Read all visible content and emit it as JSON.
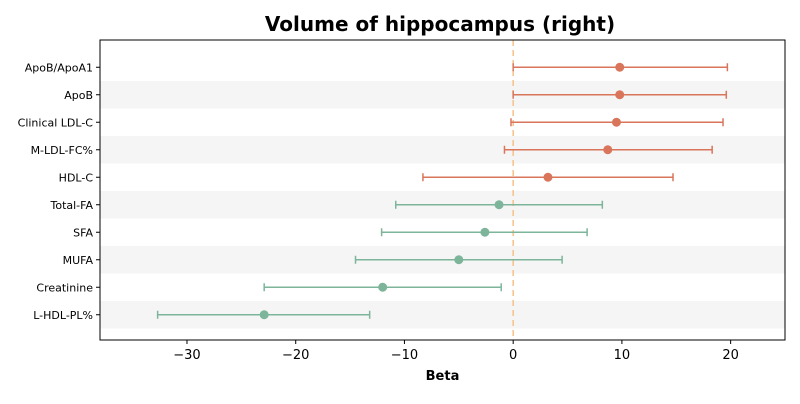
{
  "chart_data": {
    "type": "forest",
    "title": "Volume of hippocampus (right)",
    "xlabel": "Beta",
    "ylabel": "",
    "xlim": [
      -38,
      25
    ],
    "xticks": [
      -30,
      -20,
      -10,
      0,
      10,
      20
    ],
    "xtick_labels": [
      "−30",
      "−20",
      "−10",
      "0",
      "10",
      "20"
    ],
    "reference_line": 0,
    "grid": false,
    "row_shading": "alternating",
    "colors": {
      "positive": "#d9755b",
      "negative": "#7db59b",
      "reference_line": "#f5c18a",
      "row_band": "#f5f5f5"
    },
    "rows": [
      {
        "label": "ApoB/ApoA1",
        "beta": 9.8,
        "ci_low": 0.0,
        "ci_high": 19.7
      },
      {
        "label": "ApoB",
        "beta": 9.8,
        "ci_low": 0.0,
        "ci_high": 19.6
      },
      {
        "label": "Clinical LDL-C",
        "beta": 9.5,
        "ci_low": -0.2,
        "ci_high": 19.3
      },
      {
        "label": "M-LDL-FC%",
        "beta": 8.7,
        "ci_low": -0.8,
        "ci_high": 18.3
      },
      {
        "label": "HDL-C",
        "beta": 3.2,
        "ci_low": -8.3,
        "ci_high": 14.7
      },
      {
        "label": "Total-FA",
        "beta": -1.3,
        "ci_low": -10.8,
        "ci_high": 8.2
      },
      {
        "label": "SFA",
        "beta": -2.6,
        "ci_low": -12.1,
        "ci_high": 6.8
      },
      {
        "label": "MUFA",
        "beta": -5.0,
        "ci_low": -14.5,
        "ci_high": 4.5
      },
      {
        "label": "Creatinine",
        "beta": -12.0,
        "ci_low": -22.9,
        "ci_high": -1.1
      },
      {
        "label": "L-HDL-PL%",
        "beta": -22.9,
        "ci_low": -32.7,
        "ci_high": -13.2
      }
    ]
  }
}
